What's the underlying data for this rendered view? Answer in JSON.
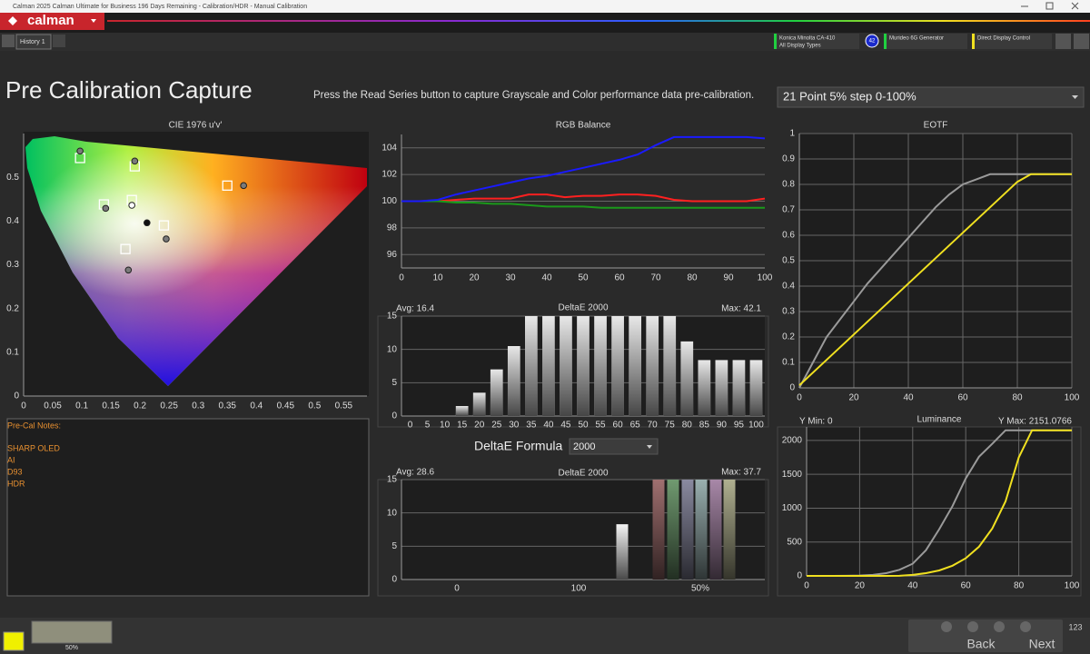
{
  "window": {
    "title": "Calman 2025 Calman Ultimate for Business 196 Days Remaining  - Calibration/HDR - Manual Calibration"
  },
  "app": {
    "logo": "calman"
  },
  "tabs": [
    "History 1"
  ],
  "devices": [
    {
      "name": "Konica Minolta CA-410",
      "detail": "All Display Types",
      "badge": "42"
    },
    {
      "name": "Murideo 6G Generator"
    },
    {
      "name": "Direct Display Control"
    }
  ],
  "page": {
    "title": "Pre Calibration Capture",
    "instruction": "Press the Read Series button to capture Grayscale and Color performance data pre-calibration.",
    "series_select": "21 Point 5% step 0-100%"
  },
  "notes": {
    "heading": "Pre-Cal Notes:",
    "lines": [
      "SHARP OLED",
      "AI",
      "D93",
      "HDR"
    ]
  },
  "deltae_formula": {
    "label": "DeltaE Formula",
    "value": "2000"
  },
  "footer": {
    "swatch_label": "50%",
    "back": "Back",
    "next": "Next",
    "counter": "123"
  },
  "chart_data": [
    {
      "type": "scatter",
      "title": "CIE 1976 u'v'",
      "xlim": [
        0,
        0.59
      ],
      "xticks": [
        0,
        0.05,
        0.1,
        0.15,
        0.2,
        0.25,
        0.3,
        0.35,
        0.4,
        0.45,
        0.5,
        0.55
      ],
      "ylim": [
        0,
        0.6
      ],
      "yticks": [
        0,
        0.1,
        0.2,
        0.3,
        0.4,
        0.5
      ],
      "series": [
        {
          "marker": "square",
          "color": "#ffffff",
          "x": [
            0.097,
            0.191,
            0.138,
            0.186,
            0.241,
            0.175,
            0.35
          ],
          "values": [
            0.544,
            0.525,
            0.438,
            0.448,
            0.39,
            0.336,
            0.481
          ]
        },
        {
          "marker": "circle",
          "color": "#7a7a7a",
          "colors": [
            "#7a7a7a",
            "#7a7a7a",
            "#7a7a7a",
            "#ffffff",
            "#7a7a7a",
            "#7a7a7a",
            "#7a7a7a",
            "#111111"
          ],
          "x": [
            0.097,
            0.191,
            0.141,
            0.186,
            0.245,
            0.18,
            0.378,
            0.212
          ],
          "values": [
            0.56,
            0.537,
            0.429,
            0.436,
            0.359,
            0.288,
            0.481,
            0.396
          ]
        }
      ]
    },
    {
      "type": "line",
      "title": "RGB Balance",
      "x": [
        0,
        5,
        10,
        15,
        20,
        25,
        30,
        35,
        40,
        45,
        50,
        55,
        60,
        65,
        70,
        75,
        80,
        85,
        90,
        95,
        100
      ],
      "xlim": [
        0,
        100
      ],
      "xticks": [
        0,
        10,
        20,
        30,
        40,
        50,
        60,
        70,
        80,
        90,
        100
      ],
      "ylim": [
        95,
        105
      ],
      "yticks": [
        96,
        98,
        100,
        102,
        104
      ],
      "grid": "y",
      "series": [
        {
          "color": "#ff2020",
          "values": [
            100,
            100,
            100,
            100.1,
            100.2,
            100.2,
            100.2,
            100.5,
            100.5,
            100.3,
            100.4,
            100.4,
            100.5,
            100.5,
            100.4,
            100.1,
            100,
            100,
            100,
            100,
            100.2
          ]
        },
        {
          "color": "#1a9a1a",
          "values": [
            100,
            100,
            100,
            99.9,
            99.9,
            99.8,
            99.8,
            99.7,
            99.6,
            99.6,
            99.6,
            99.5,
            99.5,
            99.5,
            99.5,
            99.5,
            99.5,
            99.5,
            99.5,
            99.5,
            99.5
          ]
        },
        {
          "color": "#1a1aff",
          "values": [
            100,
            100,
            100.1,
            100.5,
            100.8,
            101.1,
            101.4,
            101.7,
            101.9,
            102.2,
            102.5,
            102.8,
            103.1,
            103.5,
            104.2,
            104.8,
            104.8,
            104.8,
            104.8,
            104.8,
            104.7
          ]
        }
      ]
    },
    {
      "type": "bar",
      "title": "DeltaE 2000",
      "avg_label": "Avg: 16.4",
      "max_label": "Max: 42.1",
      "categories": [
        "0",
        "5",
        "10",
        "15",
        "20",
        "25",
        "30",
        "35",
        "40",
        "45",
        "50",
        "55",
        "60",
        "65",
        "70",
        "75",
        "80",
        "85",
        "90",
        "95",
        "100"
      ],
      "values": [
        0,
        0,
        0,
        1.5,
        3.5,
        7,
        10.5,
        15,
        15,
        15,
        15,
        15,
        15,
        15,
        15,
        15,
        11.2,
        8.4,
        8.4,
        8.4,
        8.4
      ],
      "color": "#e8e8e8",
      "ylim": [
        0,
        15
      ],
      "yticks": [
        0,
        5,
        10,
        15
      ],
      "grid": "y"
    },
    {
      "type": "bar",
      "title": "DeltaE 2000",
      "avg_label": "Avg: 28.6",
      "max_label": "Max: 37.7",
      "categories": [
        null,
        null,
        null,
        null,
        null,
        null,
        null
      ],
      "x_tick_labels": [
        "0",
        "100",
        "50%"
      ],
      "values": [
        8.3,
        15,
        15,
        15,
        15,
        15,
        15
      ],
      "colors": [
        "#f4f4f4",
        "#a07070",
        "#709a70",
        "#8a8aa0",
        "#9ab0b0",
        "#a888a8",
        "#b0b090"
      ],
      "ylim": [
        0,
        15
      ],
      "yticks": [
        0,
        5,
        10,
        15
      ],
      "grid": "y"
    },
    {
      "type": "line",
      "title": "EOTF",
      "x": [
        0,
        5,
        10,
        15,
        20,
        25,
        30,
        35,
        40,
        45,
        50,
        55,
        60,
        65,
        70,
        75,
        80,
        85,
        90,
        95,
        100
      ],
      "xlim": [
        0,
        100
      ],
      "xticks": [
        0,
        20,
        40,
        60,
        80,
        100
      ],
      "ylim": [
        0,
        1
      ],
      "yticks": [
        0,
        0.1,
        0.2,
        0.3,
        0.4,
        0.5,
        0.6,
        0.7,
        0.8,
        0.9,
        1
      ],
      "grid": "both",
      "series": [
        {
          "color": "#9a9a9a",
          "values": [
            0,
            0.1,
            0.2,
            0.27,
            0.34,
            0.41,
            0.47,
            0.53,
            0.59,
            0.65,
            0.71,
            0.76,
            0.8,
            0.82,
            0.84,
            0.84,
            0.84,
            0.84,
            0.84,
            0.84,
            0.84
          ]
        },
        {
          "color": "#f0e020",
          "values": [
            0.01,
            0.06,
            0.11,
            0.16,
            0.21,
            0.26,
            0.31,
            0.36,
            0.41,
            0.46,
            0.51,
            0.56,
            0.61,
            0.66,
            0.71,
            0.76,
            0.81,
            0.84,
            0.84,
            0.84,
            0.84
          ]
        }
      ]
    },
    {
      "type": "line",
      "title": "Luminance",
      "ymin_label": "Y Min: 0",
      "ymax_label": "Y Max: 2151.0766",
      "x": [
        0,
        5,
        10,
        15,
        20,
        25,
        30,
        35,
        40,
        45,
        50,
        55,
        60,
        65,
        70,
        75,
        80,
        85,
        90,
        95,
        100
      ],
      "xlim": [
        0,
        100
      ],
      "xticks": [
        0,
        20,
        40,
        60,
        80,
        100
      ],
      "ylim": [
        0,
        2200
      ],
      "yticks": [
        0,
        500,
        1000,
        1500,
        2000
      ],
      "grid": "both",
      "series": [
        {
          "color": "#9a9a9a",
          "values": [
            0,
            0,
            0,
            1,
            5,
            15,
            40,
            90,
            180,
            380,
            690,
            1030,
            1440,
            1760,
            1950,
            2151,
            2151,
            2151,
            2151,
            2151,
            2151
          ]
        },
        {
          "color": "#f0e020",
          "values": [
            0,
            0,
            0,
            0,
            0,
            0,
            0,
            2,
            15,
            40,
            80,
            150,
            260,
            430,
            700,
            1100,
            1750,
            2151,
            2151,
            2151,
            2151
          ]
        }
      ]
    }
  ]
}
